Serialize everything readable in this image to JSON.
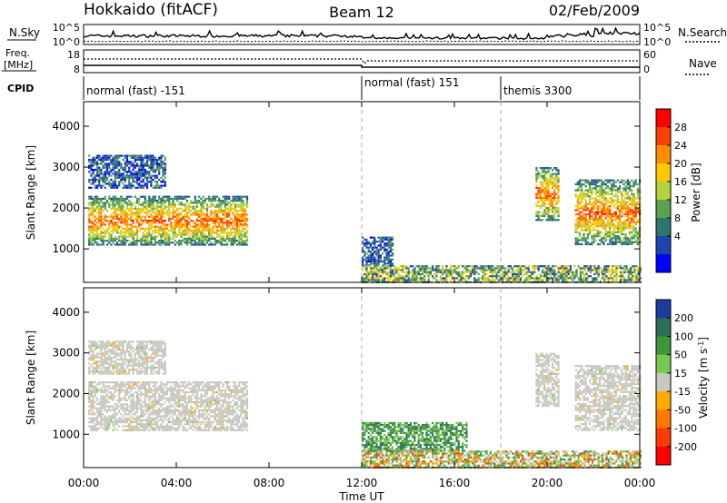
{
  "header": {
    "station": "Hokkaido (fitACF)",
    "beam": "Beam 12",
    "date": "02/Feb/2009"
  },
  "top_panels": {
    "nsky_label": "N.Sky",
    "nsky_ticks": [
      "10^5",
      "10^0"
    ],
    "nsearch_label": "N.Search",
    "nsearch_ticks": [
      "10^5",
      "10^0"
    ],
    "freq_label_1": "Freq.",
    "freq_label_2": "[MHz]",
    "freq_ticks": [
      "18",
      "8"
    ],
    "nave_label": "Nave",
    "nave_ticks": [
      "60",
      "0"
    ],
    "cpid_label": "CPID",
    "cpid_segments": [
      {
        "label": "normal (fast) -151",
        "start_hour": 0
      },
      {
        "label": "normal (fast) 151",
        "start_hour": 12
      },
      {
        "label": "themis 3300",
        "start_hour": 18
      }
    ]
  },
  "axes": {
    "x_ticks": [
      "00:00",
      "04:00",
      "08:00",
      "12:00",
      "16:00",
      "20:00",
      "00:00"
    ],
    "x_tick_hours": [
      0,
      4,
      8,
      12,
      16,
      20,
      24
    ],
    "x_label": "Time UT",
    "y_label": "Slant Range [km]",
    "y_ticks": [
      "1000",
      "2000",
      "3000",
      "4000"
    ],
    "y_tick_values": [
      1000,
      2000,
      3000,
      4000
    ],
    "y_range": [
      180,
      4600
    ]
  },
  "power_colorbar": {
    "label": "Power [dB]",
    "ticks": [
      "28",
      "24",
      "20",
      "16",
      "12",
      "8",
      "4"
    ],
    "colors": [
      "#ff0000",
      "#ff4000",
      "#ff8c00",
      "#ffc800",
      "#b4d23c",
      "#5aa050",
      "#2d786e",
      "#1e46aa",
      "#0000ff"
    ]
  },
  "velocity_colorbar": {
    "label": "Velocity [m s",
    "label_superscript": "-1",
    "label_close": "]",
    "ticks": [
      "200",
      "100",
      "50",
      "15",
      "-15",
      "-50",
      "-100",
      "-200"
    ],
    "colors": [
      "#1e3ca0",
      "#2d6e5a",
      "#3c963c",
      "#78c850",
      "#c8c8c0",
      "#ffaa00",
      "#ff7800",
      "#ff3c00",
      "#ff0000"
    ]
  },
  "chart_data": [
    {
      "type": "heatmap",
      "title": "Power",
      "xlabel": "Time UT",
      "ylabel": "Slant Range [km]",
      "xlim": [
        0,
        24
      ],
      "ylim": [
        180,
        4600
      ],
      "colorbar_range": [
        0,
        30
      ],
      "regions": [
        {
          "t": [
            0.2,
            7.1
          ],
          "r": [
            1100,
            2300
          ],
          "level": "high"
        },
        {
          "t": [
            0.2,
            3.5
          ],
          "r": [
            2500,
            3300
          ],
          "level": "low"
        },
        {
          "t": [
            12.0,
            13.3
          ],
          "r": [
            600,
            1300
          ],
          "level": "low"
        },
        {
          "t": [
            12.0,
            24.0
          ],
          "r": [
            200,
            600
          ],
          "level": "low-mid"
        },
        {
          "t": [
            19.5,
            20.5
          ],
          "r": [
            1700,
            3000
          ],
          "level": "high"
        },
        {
          "t": [
            21.2,
            24.0
          ],
          "r": [
            1100,
            2700
          ],
          "level": "high"
        }
      ]
    },
    {
      "type": "heatmap",
      "title": "Velocity",
      "xlabel": "Time UT",
      "ylabel": "Slant Range [km]",
      "xlim": [
        0,
        24
      ],
      "ylim": [
        180,
        4600
      ],
      "colorbar_range": [
        -200,
        200
      ],
      "regions": [
        {
          "t": [
            0.2,
            7.1
          ],
          "r": [
            1100,
            2300
          ],
          "level": "ground"
        },
        {
          "t": [
            0.2,
            3.5
          ],
          "r": [
            2500,
            3300
          ],
          "level": "ground"
        },
        {
          "t": [
            12.0,
            16.5
          ],
          "r": [
            600,
            1300
          ],
          "level": "positive"
        },
        {
          "t": [
            12.0,
            24.0
          ],
          "r": [
            200,
            600
          ],
          "level": "mixed"
        },
        {
          "t": [
            19.5,
            20.5
          ],
          "r": [
            1700,
            3000
          ],
          "level": "ground"
        },
        {
          "t": [
            21.2,
            24.0
          ],
          "r": [
            1100,
            2700
          ],
          "level": "ground"
        }
      ]
    }
  ]
}
